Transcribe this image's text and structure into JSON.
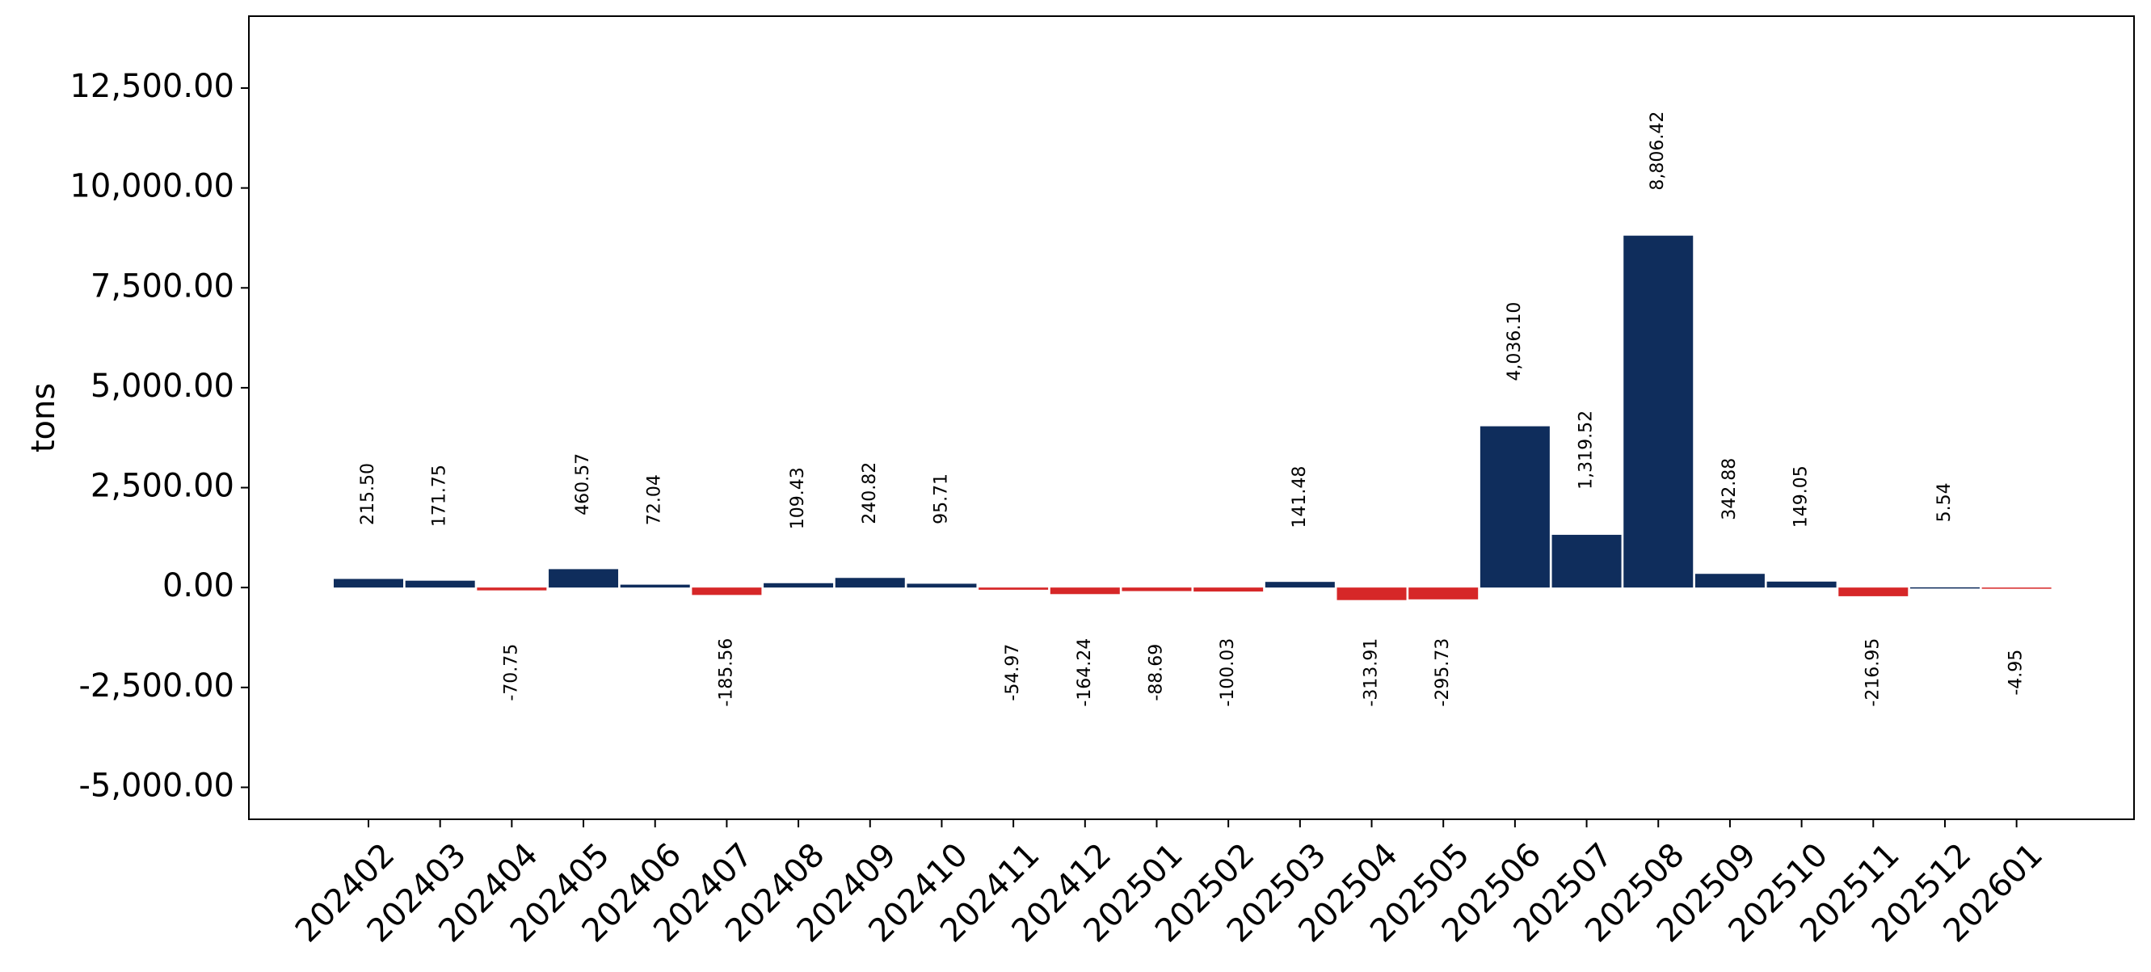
{
  "chart_data": {
    "type": "bar",
    "title": "",
    "xlabel": "",
    "ylabel": "tons",
    "categories": [
      "202402",
      "202403",
      "202404",
      "202405",
      "202406",
      "202407",
      "202408",
      "202409",
      "202410",
      "202411",
      "202412",
      "202501",
      "202502",
      "202503",
      "202504",
      "202505",
      "202506",
      "202507",
      "202508",
      "202509",
      "202510",
      "202511",
      "202512",
      "202601"
    ],
    "values": [
      215.5,
      171.75,
      -70.75,
      460.57,
      72.04,
      -185.56,
      109.43,
      240.82,
      95.71,
      -54.97,
      -164.24,
      -88.69,
      -100.03,
      141.48,
      -313.91,
      -295.73,
      4036.1,
      1319.52,
      8806.42,
      342.88,
      149.05,
      -216.95,
      5.54,
      -4.95
    ],
    "value_labels": [
      "215.50",
      "171.75",
      "-70.75",
      "460.57",
      "72.04",
      "-185.56",
      "109.43",
      "240.82",
      "95.71",
      "-54.97",
      "-164.24",
      "-88.69",
      "-100.03",
      "141.48",
      "-313.91",
      "-295.73",
      "4,036.10",
      "1,319.52",
      "8,806.42",
      "342.88",
      "149.05",
      "-216.95",
      "5.54",
      "-4.95"
    ],
    "ylim": [
      -5800,
      14300
    ],
    "yticks": [
      -5000,
      -2500,
      0,
      2500,
      5000,
      7500,
      10000,
      12500
    ],
    "ytick_labels": [
      "-5,000.00",
      "-2,500.00",
      "0.00",
      "2,500.00",
      "5,000.00",
      "7,500.00",
      "10,000.00",
      "12,500.00"
    ],
    "colors": {
      "positive": "#0f2d5c",
      "negative": "#d62728"
    },
    "grid": false,
    "legend": "none"
  }
}
